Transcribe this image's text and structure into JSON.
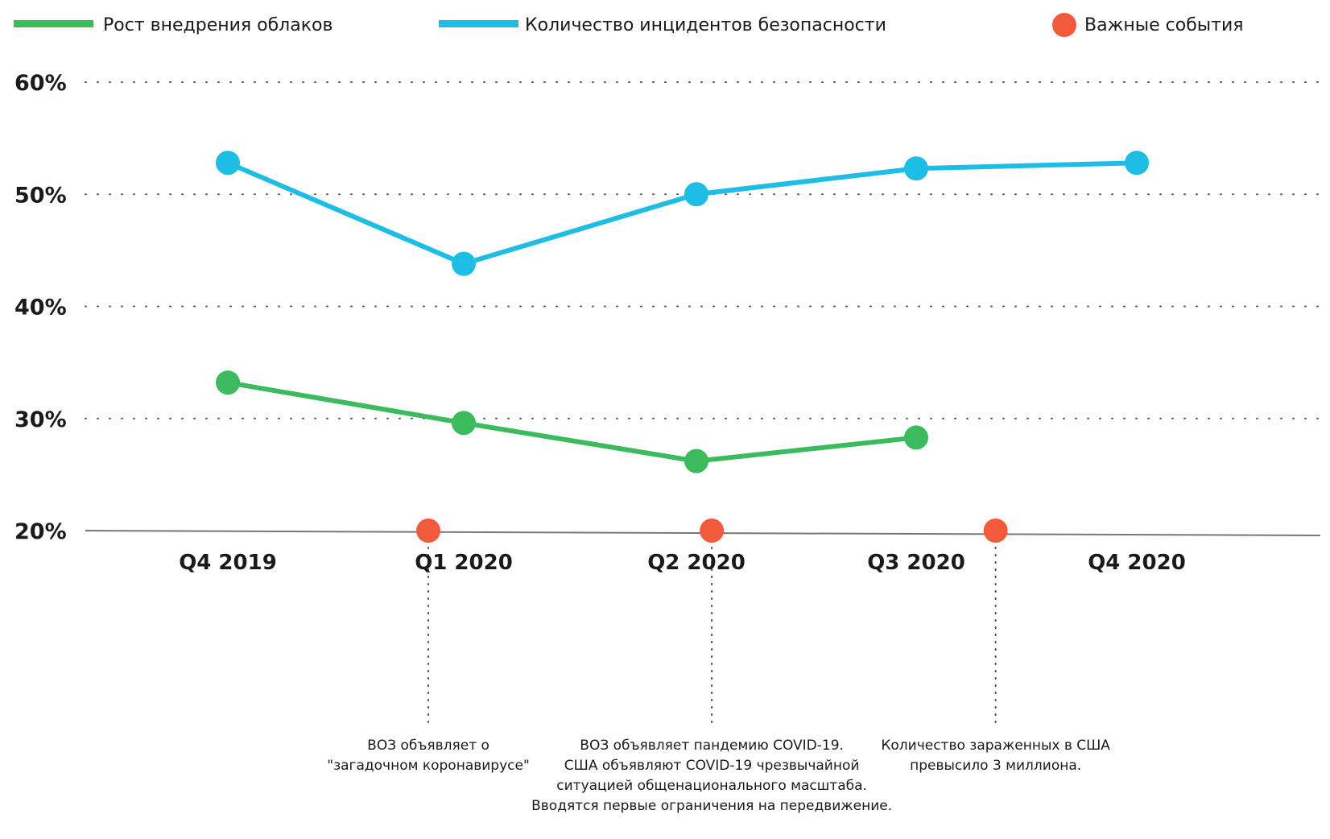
{
  "chart_data": {
    "type": "line",
    "title": "",
    "xlabel": "",
    "ylabel": "",
    "categories": [
      "Q4 2019",
      "Q1 2020",
      "Q2 2020",
      "Q3 2020",
      "Q4 2020"
    ],
    "ylim": [
      20,
      60
    ],
    "y_ticks": [
      "20%",
      "30%",
      "40%",
      "50%",
      "60%"
    ],
    "grid": "horizontal dotted",
    "legend_position": "top",
    "series": [
      {
        "name": "Рост внедрения облаков",
        "color": "#3cba5e",
        "values": [
          33.2,
          29.6,
          26.2,
          28.3,
          null
        ]
      },
      {
        "name": "Количество инцидентов безопасности",
        "color": "#1dbde6",
        "values": [
          52.8,
          43.8,
          50,
          52.3,
          52.8
        ]
      }
    ],
    "events_legend": {
      "name": "Важные события",
      "color": "#f15a3a"
    },
    "events": [
      {
        "x": 0.85,
        "lines": [
          "ВОЗ объявляет о",
          "\"загадочном коронавирусе\""
        ]
      },
      {
        "x": 2.07,
        "lines": [
          "ВОЗ объявляет пандемию COVID-19.",
          "США объявляют COVID-19 чрезвычайной",
          "ситуацией общенационального масштаба.",
          "Вводятся первые ограничения на передвижение."
        ]
      },
      {
        "x": 3.36,
        "lines": [
          "Количество зараженных в США",
          "превысило 3 миллиона."
        ]
      }
    ]
  }
}
